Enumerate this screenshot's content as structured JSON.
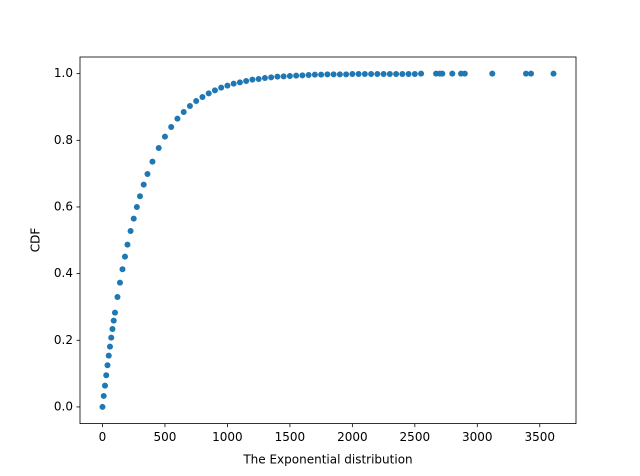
{
  "chart_data": {
    "type": "scatter",
    "xlabel": "The Exponential distribution",
    "ylabel": "CDF",
    "color": "#1f77b4",
    "x": [
      0,
      10,
      20,
      30,
      40,
      50,
      60,
      70,
      80,
      90,
      100,
      120,
      140,
      160,
      180,
      200,
      225,
      250,
      275,
      300,
      330,
      360,
      400,
      450,
      500,
      550,
      600,
      650,
      700,
      750,
      800,
      850,
      900,
      950,
      1000,
      1050,
      1100,
      1150,
      1200,
      1250,
      1300,
      1350,
      1400,
      1450,
      1500,
      1550,
      1600,
      1650,
      1700,
      1750,
      1800,
      1850,
      1900,
      1950,
      2000,
      2050,
      2100,
      2150,
      2200,
      2250,
      2300,
      2350,
      2400,
      2450,
      2500,
      2550,
      2670,
      2700,
      2720,
      2800,
      2870,
      2900,
      3120,
      3390,
      3430,
      3610
    ],
    "y": [
      0,
      0.033,
      0.064,
      0.095,
      0.125,
      0.154,
      0.181,
      0.208,
      0.234,
      0.259,
      0.283,
      0.33,
      0.373,
      0.413,
      0.451,
      0.487,
      0.528,
      0.565,
      0.6,
      0.632,
      0.667,
      0.699,
      0.736,
      0.777,
      0.811,
      0.84,
      0.865,
      0.885,
      0.903,
      0.918,
      0.93,
      0.941,
      0.95,
      0.958,
      0.964,
      0.97,
      0.974,
      0.978,
      0.982,
      0.984,
      0.987,
      0.989,
      0.991,
      0.992,
      0.993,
      0.994,
      0.995,
      0.996,
      0.997,
      0.997,
      0.998,
      0.998,
      0.998,
      0.998,
      0.999,
      0.999,
      0.999,
      0.999,
      0.999,
      0.999,
      0.999,
      0.999,
      0.999,
      0.999,
      0.999,
      1,
      1,
      1,
      1,
      1,
      1,
      1,
      1,
      1,
      1,
      1
    ],
    "xlim": [
      -180,
      3790
    ],
    "ylim": [
      -0.05,
      1.05
    ],
    "xticks": [
      0,
      500,
      1000,
      1500,
      2000,
      2500,
      3000,
      3500
    ],
    "yticks": [
      {
        "value": 0,
        "label": "0.0"
      },
      0.2,
      0.4,
      0.6,
      0.8,
      {
        "value": 1,
        "label": "1.0"
      }
    ]
  }
}
